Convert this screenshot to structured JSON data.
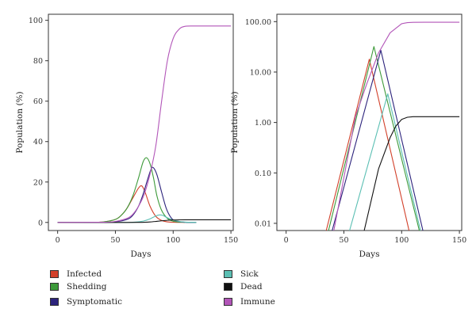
{
  "chart_data": [
    {
      "type": "line",
      "ylabel": "Population (%)",
      "xlabel": "Days",
      "xlim": [
        -8,
        152
      ],
      "ylim": [
        -4,
        103
      ],
      "scale_y": "linear",
      "xticks": [
        0,
        50,
        100,
        150
      ],
      "yticks": [
        0,
        20,
        40,
        60,
        80,
        100
      ],
      "ytick_labels": [
        "0",
        "20",
        "40",
        "60",
        "80",
        "100"
      ],
      "series": [
        {
          "name": "Infected",
          "color": "#d2402a",
          "x": [
            0,
            30,
            40,
            50,
            55,
            60,
            65,
            70,
            73,
            76,
            80,
            85,
            90,
            95,
            100,
            110
          ],
          "y": [
            0,
            0.05,
            0.3,
            1.5,
            3.5,
            7,
            12,
            17,
            18,
            14.5,
            8,
            3,
            1,
            0.3,
            0.1,
            0
          ]
        },
        {
          "name": "Shedding",
          "color": "#3d9a3a",
          "x": [
            0,
            30,
            40,
            50,
            55,
            60,
            65,
            70,
            74,
            77,
            80,
            83,
            86,
            90,
            95,
            100,
            105,
            120
          ],
          "y": [
            0,
            0.05,
            0.3,
            1.5,
            3.5,
            7,
            13,
            22,
            30,
            32,
            29,
            22,
            13,
            6,
            2,
            0.6,
            0.2,
            0
          ]
        },
        {
          "name": "Symptomatic",
          "color": "#2c237c",
          "x": [
            0,
            40,
            50,
            60,
            65,
            70,
            74,
            78,
            81,
            83,
            86,
            90,
            94,
            98,
            102,
            110,
            120
          ],
          "y": [
            0,
            0.05,
            0.3,
            1.5,
            3.5,
            8,
            14,
            21.5,
            26.5,
            27,
            23.5,
            15,
            7,
            2.5,
            0.8,
            0.1,
            0
          ]
        },
        {
          "name": "Sick",
          "color": "#5bbfb3",
          "x": [
            0,
            55,
            65,
            70,
            75,
            80,
            85,
            88,
            91,
            95,
            100,
            105,
            110,
            120
          ],
          "y": [
            0,
            0.02,
            0.1,
            0.3,
            0.8,
            1.8,
            3.2,
            3.7,
            3.5,
            2.3,
            1.2,
            0.5,
            0.2,
            0
          ]
        },
        {
          "name": "Dead",
          "color": "#111111",
          "x": [
            0,
            60,
            70,
            75,
            80,
            85,
            90,
            95,
            100,
            105,
            110,
            150
          ],
          "y": [
            0,
            0.01,
            0.05,
            0.1,
            0.25,
            0.5,
            0.8,
            1.05,
            1.2,
            1.28,
            1.3,
            1.3
          ]
        },
        {
          "name": "Immune",
          "color": "#b255b8",
          "x": [
            0,
            40,
            50,
            60,
            65,
            70,
            75,
            80,
            85,
            90,
            95,
            100,
            105,
            110,
            120,
            150
          ],
          "y": [
            0,
            0.1,
            0.5,
            2,
            4,
            8,
            14,
            24,
            38,
            60,
            80,
            91,
            95.5,
            97,
            97.2,
            97.2
          ]
        }
      ]
    },
    {
      "type": "line",
      "ylabel": "Population (%)",
      "xlabel": "Days",
      "xlim": [
        -8,
        152
      ],
      "ylim": [
        0.0072,
        140
      ],
      "scale_y": "log",
      "xticks": [
        0,
        50,
        100,
        150
      ],
      "yticks": [
        0.01,
        0.1,
        1,
        10,
        100
      ],
      "ytick_labels": [
        "0.01",
        "0.10",
        "1.00",
        "10.00",
        "100.00"
      ],
      "series": [
        {
          "name": "Infected",
          "color": "#d2402a",
          "x": [
            33,
            72,
            108
          ],
          "y": [
            0.005,
            18,
            0.005
          ]
        },
        {
          "name": "Shedding",
          "color": "#3d9a3a",
          "x": [
            35,
            76,
            117
          ],
          "y": [
            0.005,
            32,
            0.005
          ]
        },
        {
          "name": "Symptomatic",
          "color": "#2c237c",
          "x": [
            38,
            82,
            120
          ],
          "y": [
            0.005,
            27,
            0.005
          ]
        },
        {
          "name": "Sick",
          "color": "#5bbfb3",
          "x": [
            53,
            88,
            118
          ],
          "y": [
            0.005,
            3.7,
            0.005
          ]
        },
        {
          "name": "Dead",
          "color": "#111111",
          "x": [
            66,
            80,
            90,
            95,
            100,
            105,
            110,
            150
          ],
          "y": [
            0.005,
            0.12,
            0.5,
            0.85,
            1.15,
            1.27,
            1.3,
            1.3
          ]
        },
        {
          "name": "Immune",
          "color": "#b255b8",
          "x": [
            40,
            60,
            70,
            80,
            90,
            100,
            105,
            110,
            120,
            150
          ],
          "y": [
            0.005,
            1.3,
            6,
            24,
            60,
            91,
            95.5,
            97,
            97.2,
            97.2
          ]
        }
      ]
    }
  ],
  "legend": {
    "items": [
      {
        "label": "Infected",
        "color": "#d2402a"
      },
      {
        "label": "Shedding",
        "color": "#3d9a3a"
      },
      {
        "label": "Symptomatic",
        "color": "#2c237c"
      },
      {
        "label": "Sick",
        "color": "#5bbfb3"
      },
      {
        "label": "Dead",
        "color": "#111111"
      },
      {
        "label": "Immune",
        "color": "#b255b8"
      }
    ]
  }
}
